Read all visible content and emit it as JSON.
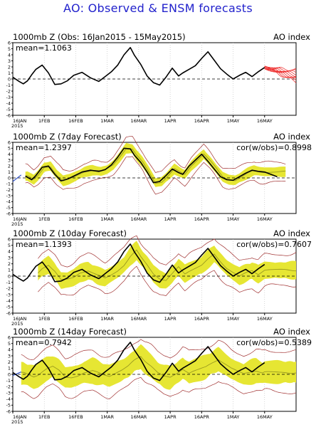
{
  "title": "AO: Observed & ENSM forecasts",
  "colors": {
    "title": "#2222cc",
    "observed": "#000000",
    "forecast_band": "#e6e633",
    "forecast_envelope": "#a03030",
    "forecast_mean": "#9a9a20",
    "ensemble_members": "#ee3333",
    "zero_line": "#000000",
    "grid": "#bbbbbb",
    "blue_segment": "#3355cc"
  },
  "chart_data": [
    {
      "type": "line",
      "title": "1000mb Z (Obs: 16Jan2015 - 15May2015)",
      "right_label": "AO index",
      "mean_label": "mean=1.1063",
      "cor_label": "",
      "x_ticks": [
        "16JAN",
        "1FEB",
        "16FEB",
        "1MAR",
        "16MAR",
        "1APR",
        "16APR",
        "1MAY",
        "16MAY"
      ],
      "x_year": "2015",
      "x_range": [
        0,
        135
      ],
      "y_range": [
        -6,
        6
      ],
      "y_ticks": [
        "6",
        "5",
        "4",
        "3",
        "2",
        "1",
        "0",
        "-1",
        "-2",
        "-3",
        "-4",
        "-5",
        "-6"
      ],
      "series": [
        {
          "x": [
            0,
            3,
            5,
            7,
            9,
            11,
            14,
            17,
            20,
            23,
            26,
            29,
            33,
            37,
            41,
            44,
            47,
            50,
            53,
            56,
            58,
            61,
            64,
            67,
            70,
            73,
            76,
            79,
            81,
            84,
            87,
            90,
            93,
            96,
            99,
            102,
            105,
            108,
            111,
            114,
            117,
            120
          ],
          "y": [
            0.3,
            -0.4,
            -0.8,
            -0.3,
            0.7,
            1.6,
            2.3,
            1.0,
            -0.9,
            -0.8,
            -0.3,
            0.6,
            1.1,
            0.2,
            -0.4,
            0.4,
            1.2,
            2.3,
            4.0,
            5.2,
            3.9,
            2.4,
            0.5,
            -0.6,
            -1.0,
            0.3,
            1.8,
            0.5,
            1.0,
            1.6,
            2.2,
            3.4,
            4.5,
            3.1,
            1.7,
            0.8,
            0.0,
            0.6,
            1.1,
            0.4,
            1.2,
            1.9
          ]
        }
      ],
      "ensemble_start": 120,
      "ensemble_end": 135
    },
    {
      "type": "line",
      "title": "1000mb Z (7day Forecast)",
      "right_label": "AO index",
      "mean_label": "mean=1.2397",
      "cor_label": "cor(w/obs)=0.8998",
      "x_ticks": [
        "16JAN",
        "1FEB",
        "16FEB",
        "1MAR",
        "16MAR",
        "1APR",
        "16APR",
        "1MAY",
        "16MAY"
      ],
      "x_year": "2015",
      "x_range": [
        0,
        135
      ],
      "y_range": [
        -6,
        6
      ],
      "y_ticks": [
        "6",
        "5",
        "4",
        "3",
        "2",
        "1",
        "0",
        "-1",
        "-2",
        "-3",
        "-4",
        "-5",
        "-6"
      ],
      "series": [
        {
          "x": [
            6,
            9,
            11,
            14,
            17,
            20,
            23,
            26,
            29,
            33,
            37,
            41,
            44,
            47,
            50,
            53,
            56,
            58,
            61,
            64,
            67,
            70,
            73,
            76,
            79,
            81,
            84,
            87,
            90,
            93,
            96,
            99,
            102,
            105,
            108,
            111,
            114,
            117,
            120,
            123,
            126
          ],
          "y": [
            0.3,
            -0.3,
            0.4,
            1.8,
            2.0,
            0.6,
            -0.5,
            -0.2,
            0.3,
            1.0,
            1.3,
            1.1,
            1.4,
            2.2,
            3.5,
            5.0,
            4.9,
            3.8,
            2.6,
            1.0,
            -0.8,
            -0.6,
            0.4,
            1.5,
            0.9,
            0.6,
            2.0,
            3.0,
            4.0,
            2.8,
            1.5,
            0.2,
            -0.3,
            -0.4,
            0.2,
            0.8,
            1.3,
            1.1,
            1.0,
            0.6,
            0.2
          ]
        }
      ],
      "blue_x": [
        0,
        4
      ],
      "blue_y": [
        -0.6,
        0.5
      ],
      "band_x_start": 6,
      "band_x_end": 130
    },
    {
      "type": "line",
      "title": "1000mb Z (10day Forecast)",
      "right_label": "AO index",
      "mean_label": "mean=1.1393",
      "cor_label": "cor(w/obs)=0.7607",
      "x_ticks": [
        "16JAN",
        "1FEB",
        "16FEB",
        "1MAR",
        "16MAR",
        "1APR",
        "16APR",
        "1MAY",
        "16MAY"
      ],
      "x_year": "2015",
      "x_range": [
        0,
        135
      ],
      "y_range": [
        -6,
        6
      ],
      "y_ticks": [
        "6",
        "5",
        "4",
        "3",
        "2",
        "1",
        "0",
        "-1",
        "-2",
        "-3",
        "-4",
        "-5",
        "-6"
      ],
      "series": [
        {
          "x": [
            0,
            3,
            5,
            7,
            9,
            11,
            14,
            17,
            20,
            23,
            26,
            29,
            33,
            37,
            41,
            44,
            47,
            50,
            53,
            56,
            58,
            61,
            64,
            67,
            70,
            73,
            76,
            79,
            81,
            84,
            87,
            90,
            93,
            96,
            99,
            102,
            105,
            108,
            111,
            114,
            117,
            120
          ],
          "y": [
            0.3,
            -0.4,
            -0.8,
            -0.3,
            0.7,
            1.6,
            2.3,
            1.0,
            -0.9,
            -0.8,
            -0.3,
            0.6,
            1.1,
            0.2,
            -0.4,
            0.4,
            1.2,
            2.3,
            4.0,
            5.2,
            3.9,
            2.4,
            0.5,
            -0.6,
            -1.0,
            0.3,
            1.8,
            0.5,
            1.0,
            1.6,
            2.2,
            3.4,
            4.5,
            3.1,
            1.7,
            0.8,
            0.0,
            0.6,
            1.1,
            0.4,
            1.2,
            1.9
          ]
        }
      ],
      "band_x_start": 12,
      "band_x_end": 135
    },
    {
      "type": "line",
      "title": "1000mb Z (14day Forecast)",
      "right_label": "AO index",
      "mean_label": "mean=0.7942",
      "cor_label": "cor(w/obs)=0.5389",
      "x_ticks": [
        "16JAN",
        "1FEB",
        "16FEB",
        "1MAR",
        "16MAR",
        "1APR",
        "16APR",
        "1MAY",
        "16MAY"
      ],
      "x_year": "2015",
      "x_range": [
        0,
        135
      ],
      "y_range": [
        -6,
        6
      ],
      "y_ticks": [
        "6",
        "5",
        "4",
        "3",
        "2",
        "1",
        "0",
        "-1",
        "-2",
        "-3",
        "-4",
        "-5",
        "-6"
      ],
      "series": [
        {
          "x": [
            0,
            3,
            5,
            7,
            9,
            11,
            14,
            17,
            20,
            23,
            26,
            29,
            33,
            37,
            41,
            44,
            47,
            50,
            53,
            56,
            58,
            61,
            64,
            67,
            70,
            73,
            76,
            79,
            81,
            84,
            87,
            90,
            93,
            96,
            99,
            102,
            105,
            108,
            111,
            114,
            117,
            120
          ],
          "y": [
            0.3,
            -0.4,
            -0.8,
            -0.3,
            0.7,
            1.6,
            2.3,
            1.0,
            -0.9,
            -0.8,
            -0.3,
            0.6,
            1.1,
            0.2,
            -0.4,
            0.4,
            1.2,
            2.3,
            4.0,
            5.2,
            3.9,
            2.4,
            0.5,
            -0.6,
            -1.0,
            0.3,
            1.8,
            0.5,
            1.0,
            1.6,
            2.2,
            3.4,
            4.5,
            3.1,
            1.7,
            0.8,
            0.0,
            0.6,
            1.1,
            0.4,
            1.2,
            1.9
          ]
        }
      ],
      "blue_x": [
        0,
        4
      ],
      "blue_y": [
        -0.2,
        0.4
      ],
      "band_x_start": 4,
      "band_x_end": 135
    }
  ]
}
